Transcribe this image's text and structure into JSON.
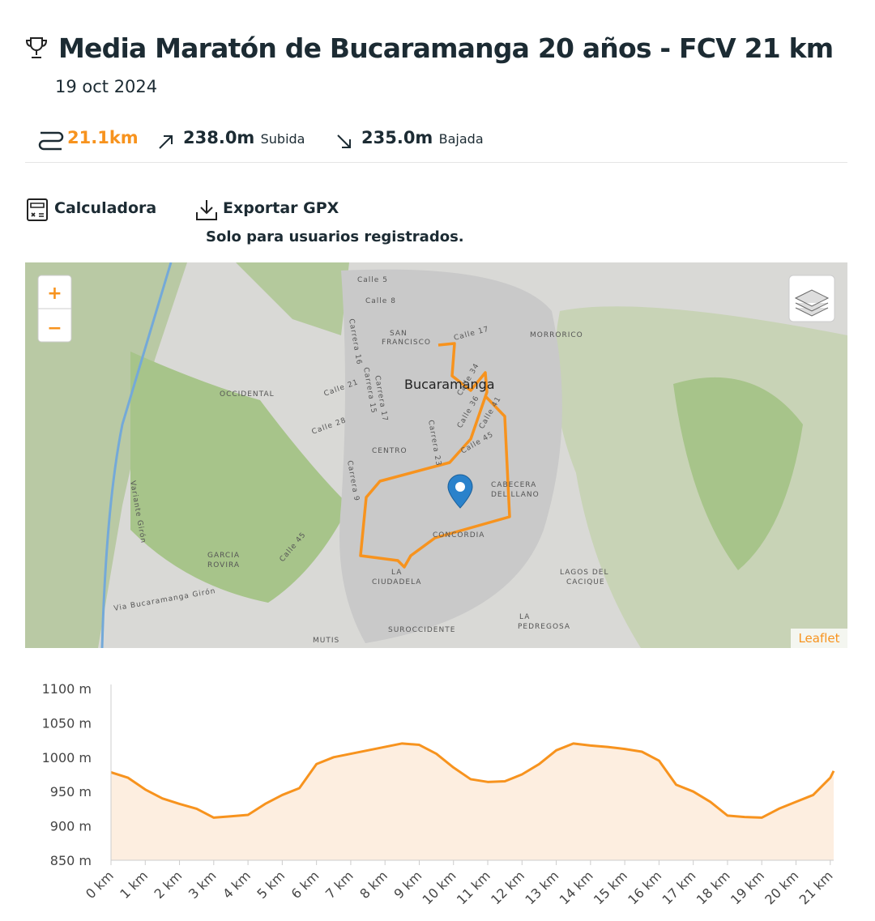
{
  "header": {
    "title": "Media Maratón de Bucaramanga 20 años - FCV 21 km",
    "date": "19 oct 2024"
  },
  "stats": {
    "distance": "21.1km",
    "ascent": "238.0m",
    "ascent_label": "Subida",
    "descent": "235.0m",
    "descent_label": "Bajada"
  },
  "actions": {
    "calculator": "Calculadora",
    "export": "Exportar GPX",
    "export_note": "Solo para usuarios registrados."
  },
  "map": {
    "zoom_in": "+",
    "zoom_out": "−",
    "attribution": "Leaflet",
    "labels": [
      "Calle 5",
      "Calle 8",
      "SAN",
      "FRANCISCO",
      "Calle 17",
      "MORRORICO",
      "Carrera 16",
      "Carrera 15",
      "Carrera 17",
      "Calle 21",
      "OCCIDENTAL",
      "Bucaramanga",
      "Calle 28",
      "CENTRO",
      "Carrera 23",
      "Calle 34",
      "Calle 36",
      "Calle 41",
      "Calle 45",
      "Carrera 9",
      "CABECERA",
      "DEL LLANO",
      "CONCORDIA",
      "GARCIA",
      "ROVIRA",
      "Calle 45",
      "LA",
      "CIUDADELA",
      "LAGOS DEL",
      "CACIQUE",
      "Via Bucaramanga Girón",
      "Variante Girón",
      "SUROCCIDENTE",
      "LA",
      "PEDREGOSA",
      "MUTIS"
    ]
  },
  "chart_data": {
    "type": "area",
    "x": [
      0,
      0.5,
      1,
      1.5,
      2,
      2.5,
      3,
      3.5,
      4,
      4.5,
      5,
      5.5,
      6,
      6.5,
      7,
      7.5,
      8,
      8.5,
      9,
      9.5,
      10,
      10.5,
      11,
      11.5,
      12,
      12.5,
      13,
      13.5,
      14,
      14.5,
      15,
      15.5,
      16,
      16.5,
      17,
      17.5,
      18,
      18.5,
      19,
      19.5,
      20,
      20.5,
      21,
      21.1
    ],
    "series": [
      {
        "color": "#f7931e",
        "values": [
          978,
          970,
          953,
          940,
          932,
          925,
          912,
          914,
          916,
          932,
          945,
          955,
          990,
          1000,
          1005,
          1010,
          1015,
          1020,
          1018,
          1005,
          985,
          968,
          964,
          965,
          975,
          990,
          1010,
          1020,
          1017,
          1015,
          1012,
          1008,
          995,
          960,
          950,
          935,
          915,
          913,
          912,
          925,
          935,
          945,
          970,
          980
        ]
      }
    ],
    "fill_color": "#fdeee0",
    "xlim": [
      0,
      21.1
    ],
    "ylim": [
      850,
      1100
    ],
    "yticks": [
      {
        "value": 850,
        "label": "850 m"
      },
      {
        "value": 900,
        "label": "900 m"
      },
      {
        "value": 950,
        "label": "950 m"
      },
      {
        "value": 1000,
        "label": "1000 m"
      },
      {
        "value": 1050,
        "label": "1050 m"
      },
      {
        "value": 1100,
        "label": "1100 m"
      }
    ],
    "xticks": [
      {
        "value": 0,
        "label": "0 km"
      },
      {
        "value": 1,
        "label": "1 km"
      },
      {
        "value": 2,
        "label": "2 km"
      },
      {
        "value": 3,
        "label": "3 km"
      },
      {
        "value": 4,
        "label": "4 km"
      },
      {
        "value": 5,
        "label": "5 km"
      },
      {
        "value": 6,
        "label": "6 km"
      },
      {
        "value": 7,
        "label": "7 km"
      },
      {
        "value": 8,
        "label": "8 km"
      },
      {
        "value": 9,
        "label": "9 km"
      },
      {
        "value": 10,
        "label": "10 km"
      },
      {
        "value": 11,
        "label": "11 km"
      },
      {
        "value": 12,
        "label": "12 km"
      },
      {
        "value": 13,
        "label": "13 km"
      },
      {
        "value": 14,
        "label": "14 km"
      },
      {
        "value": 15,
        "label": "15 km"
      },
      {
        "value": 16,
        "label": "16 km"
      },
      {
        "value": 17,
        "label": "17 km"
      },
      {
        "value": 18,
        "label": "18 km"
      },
      {
        "value": 19,
        "label": "19 km"
      },
      {
        "value": 20,
        "label": "20 km"
      },
      {
        "value": 21,
        "label": "21 km"
      }
    ]
  }
}
